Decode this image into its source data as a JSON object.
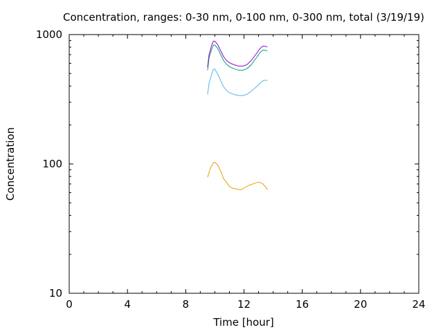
{
  "chart_data": {
    "type": "line",
    "title": "Concentration, ranges: 0-30 nm, 0-100 nm, 0-300 nm, total (3/19/19)",
    "xlabel": "Time [hour]",
    "ylabel": "Concentration",
    "xlim": [
      0,
      24
    ],
    "ylim": [
      10,
      1000
    ],
    "yscale": "log",
    "grid": false,
    "xticks": [
      "0",
      "4",
      "8",
      "12",
      "16",
      "20",
      "24"
    ],
    "yticks": [
      "10",
      "100",
      "1000"
    ],
    "series": [
      {
        "color": "#e69f00",
        "x": [
          9.5,
          9.7,
          9.9,
          10.0,
          10.2,
          10.4,
          10.6,
          10.8,
          11.0,
          11.2,
          11.5,
          11.8,
          12.0,
          12.3,
          12.6,
          12.9,
          13.1,
          13.3,
          13.5,
          13.6
        ],
        "y": [
          79,
          93,
          102,
          103,
          98,
          88,
          77,
          72,
          67,
          65,
          64,
          63,
          65,
          68,
          70,
          72,
          72,
          70,
          66,
          63
        ]
      },
      {
        "color": "#56b4e9",
        "x": [
          9.5,
          9.6,
          9.8,
          9.9,
          10.0,
          10.2,
          10.4,
          10.6,
          10.8,
          11.0,
          11.3,
          11.6,
          11.9,
          12.2,
          12.5,
          12.8,
          13.1,
          13.3,
          13.5,
          13.6
        ],
        "y": [
          345,
          420,
          500,
          540,
          540,
          495,
          440,
          395,
          370,
          355,
          345,
          338,
          338,
          345,
          365,
          390,
          420,
          440,
          445,
          440
        ]
      },
      {
        "color": "#009e73",
        "x": [
          9.5,
          9.6,
          9.8,
          9.9,
          10.0,
          10.2,
          10.4,
          10.6,
          10.8,
          11.0,
          11.3,
          11.6,
          11.9,
          12.2,
          12.5,
          12.8,
          13.1,
          13.3,
          13.5,
          13.6
        ],
        "y": [
          530,
          660,
          780,
          830,
          830,
          780,
          700,
          630,
          590,
          565,
          545,
          532,
          530,
          545,
          585,
          650,
          725,
          760,
          755,
          745
        ]
      },
      {
        "color": "#9400d3",
        "x": [
          9.5,
          9.6,
          9.8,
          9.9,
          10.0,
          10.2,
          10.4,
          10.6,
          10.8,
          11.0,
          11.3,
          11.6,
          11.9,
          12.2,
          12.5,
          12.8,
          13.1,
          13.3,
          13.5,
          13.6
        ],
        "y": [
          560,
          700,
          840,
          890,
          890,
          835,
          750,
          675,
          630,
          605,
          585,
          572,
          570,
          585,
          630,
          700,
          780,
          815,
          810,
          800
        ]
      }
    ]
  }
}
